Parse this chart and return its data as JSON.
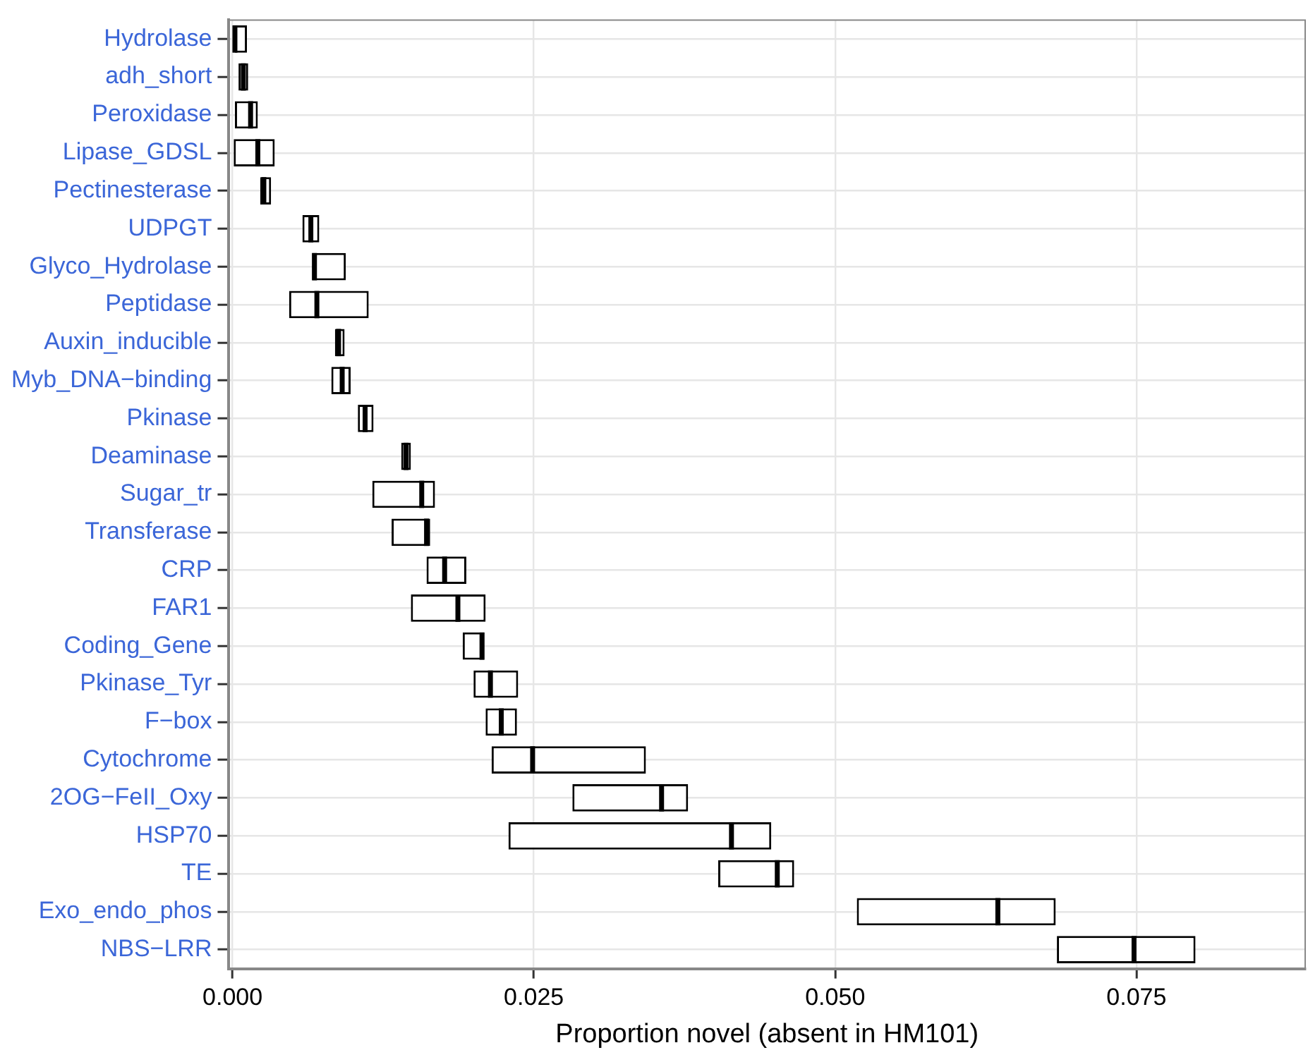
{
  "chart_data": {
    "type": "box",
    "orientation": "horizontal",
    "xlabel": "Proportion novel (absent in HM101)",
    "categories": [
      "Hydrolase",
      "adh_short",
      "Peroxidase",
      "Lipase_GDSL",
      "Pectinesterase",
      "UDPGT",
      "Glyco_Hydrolase",
      "Peptidase",
      "Auxin_inducible",
      "Myb_DNA−binding",
      "Pkinase",
      "Deaminase",
      "Sugar_tr",
      "Transferase",
      "CRP",
      "FAR1",
      "Coding_Gene",
      "Pkinase_Tyr",
      "F−box",
      "Cytochrome",
      "2OG−FeII_Oxy",
      "HSP70",
      "TE",
      "Exo_endo_phos",
      "NBS−LRR"
    ],
    "boxes": [
      {
        "q1": 0.0002,
        "median": 0.0002,
        "q3": 0.0012
      },
      {
        "q1": 0.0005,
        "median": 0.0009,
        "q3": 0.0013
      },
      {
        "q1": 0.0002,
        "median": 0.0015,
        "q3": 0.0021
      },
      {
        "q1": 0.0001,
        "median": 0.0021,
        "q3": 0.0035
      },
      {
        "q1": 0.0023,
        "median": 0.0026,
        "q3": 0.0032
      },
      {
        "q1": 0.0058,
        "median": 0.0065,
        "q3": 0.0072
      },
      {
        "q1": 0.0066,
        "median": 0.0068,
        "q3": 0.0094
      },
      {
        "q1": 0.0047,
        "median": 0.007,
        "q3": 0.0113
      },
      {
        "q1": 0.0085,
        "median": 0.0088,
        "q3": 0.0093
      },
      {
        "q1": 0.0082,
        "median": 0.0091,
        "q3": 0.0098
      },
      {
        "q1": 0.0104,
        "median": 0.011,
        "q3": 0.0117
      },
      {
        "q1": 0.014,
        "median": 0.0144,
        "q3": 0.0148
      },
      {
        "q1": 0.0116,
        "median": 0.0157,
        "q3": 0.0168
      },
      {
        "q1": 0.0132,
        "median": 0.0161,
        "q3": 0.0164
      },
      {
        "q1": 0.0161,
        "median": 0.0176,
        "q3": 0.0194
      },
      {
        "q1": 0.0148,
        "median": 0.0187,
        "q3": 0.021
      },
      {
        "q1": 0.0191,
        "median": 0.0207,
        "q3": 0.0209
      },
      {
        "q1": 0.02,
        "median": 0.0214,
        "q3": 0.0237
      },
      {
        "q1": 0.021,
        "median": 0.0223,
        "q3": 0.0236
      },
      {
        "q1": 0.0215,
        "median": 0.0249,
        "q3": 0.0343
      },
      {
        "q1": 0.0282,
        "median": 0.0356,
        "q3": 0.0378
      },
      {
        "q1": 0.0229,
        "median": 0.0414,
        "q3": 0.0447
      },
      {
        "q1": 0.0403,
        "median": 0.0452,
        "q3": 0.0466
      },
      {
        "q1": 0.0518,
        "median": 0.0635,
        "q3": 0.0683
      },
      {
        "q1": 0.0684,
        "median": 0.0748,
        "q3": 0.0799
      }
    ],
    "xlim": [
      -0.0003,
      0.089
    ],
    "xticks": [
      {
        "value": 0,
        "label": "0.000"
      },
      {
        "value": 0.025,
        "label": "0.025"
      },
      {
        "value": 0.05,
        "label": "0.050"
      },
      {
        "value": 0.075,
        "label": "0.075"
      }
    ],
    "grid": true
  }
}
